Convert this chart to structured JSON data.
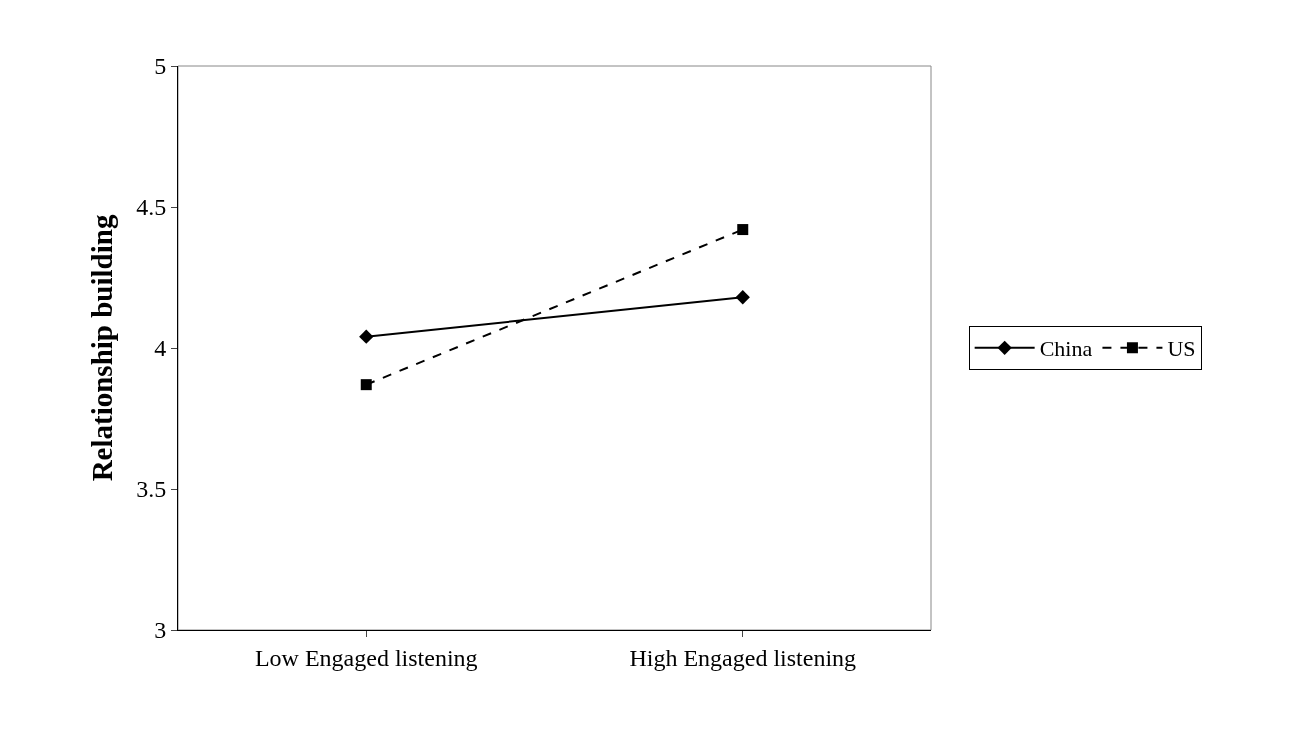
{
  "chart_data": {
    "type": "line",
    "ylabel": "Relationship building",
    "categories": [
      "Low Engaged listening",
      "High Engaged listening"
    ],
    "series": [
      {
        "name": "China",
        "color": "#000000",
        "values": [
          4.04,
          4.18
        ],
        "marker": "diamond",
        "line_style": "solid"
      },
      {
        "name": "US",
        "color": "#000000",
        "values": [
          3.87,
          4.42
        ],
        "marker": "square",
        "line_style": "dashed"
      }
    ],
    "ylim": [
      3,
      5
    ],
    "yticks": [
      3,
      3.5,
      4,
      4.5,
      5
    ],
    "grid": false,
    "legend": "right"
  }
}
